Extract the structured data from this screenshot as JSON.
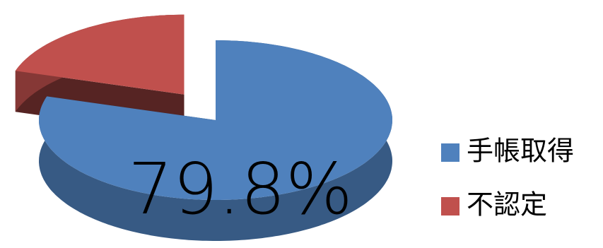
{
  "chart_data": {
    "type": "pie3d",
    "categories": [
      "手帳取得",
      "不認定"
    ],
    "values": [
      79.8,
      20.2
    ],
    "value_labels": [
      "79.8%",
      null
    ],
    "colors": [
      "#4f81bd",
      "#c0504d"
    ],
    "legend": "right"
  }
}
